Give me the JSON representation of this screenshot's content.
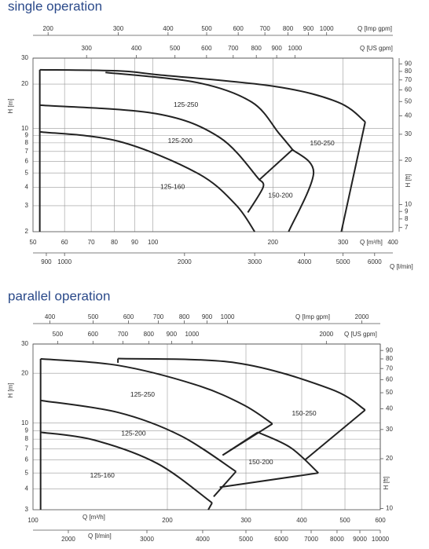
{
  "chart_data": [
    {
      "type": "line",
      "title": "single operation",
      "log_scale": true,
      "grid": true,
      "color": "#222222",
      "xlabel": "Q [m³/h]",
      "xlim": [
        50,
        400
      ],
      "xticks": [
        50,
        60,
        70,
        80,
        90,
        100,
        200,
        300,
        400
      ],
      "ylabel": "H [m]",
      "ylim": [
        2,
        30
      ],
      "yticks": [
        2,
        3,
        4,
        5,
        6,
        7,
        8,
        9,
        10,
        20,
        30
      ],
      "y2label": "H [ft]",
      "y2lim": [
        6.56,
        98.4
      ],
      "y2ticks": [
        7,
        8,
        9,
        10,
        20,
        30,
        40,
        50,
        60,
        70,
        80,
        90
      ],
      "top_axes": [
        {
          "label": "Q [Imp gpm]",
          "lim": [
            183.3,
            1466.4
          ],
          "ticks": [
            200,
            300,
            400,
            500,
            600,
            700,
            800,
            900,
            1000
          ]
        },
        {
          "label": "Q [US gpm]",
          "lim": [
            220.1,
            1761.2
          ],
          "ticks": [
            300,
            400,
            500,
            600,
            700,
            800,
            900,
            1000
          ]
        }
      ],
      "bottom_axis2": {
        "label": "Q [l/min]",
        "lim": [
          833.3,
          6666.7
        ],
        "ticks": [
          900,
          1000,
          2000,
          3000,
          4000,
          5000,
          6000
        ]
      },
      "curves": [
        {
          "x": [
            52,
            52
          ],
          "y": [
            2,
            25
          ]
        },
        {
          "x": [
            52,
            82,
            102,
            202,
            291,
            341
          ],
          "y": [
            25,
            24.6,
            23.2,
            19.3,
            15.1,
            11.1
          ]
        },
        {
          "x": [
            341,
            297
          ],
          "y": [
            11.1,
            2
          ]
        },
        {
          "x": [
            76,
            129,
            177,
            207,
            224
          ],
          "y": [
            24,
            20.5,
            15.1,
            9.3,
            7.2
          ]
        },
        {
          "x": [
            224,
            253,
            219
          ],
          "y": [
            7.2,
            5,
            2
          ]
        },
        {
          "x": [
            185,
            224
          ],
          "y": [
            4.5,
            7.2
          ]
        },
        {
          "x": [
            52,
            102,
            147,
            185
          ],
          "y": [
            14.4,
            12.6,
            8.7,
            4.5
          ]
        },
        {
          "x": [
            185,
            189,
            173
          ],
          "y": [
            4.5,
            4,
            2.7
          ]
        },
        {
          "x": [
            52,
            82,
            129,
            161,
            180
          ],
          "y": [
            9.5,
            8.2,
            5,
            3.07,
            2
          ]
        }
      ],
      "region_labels": [
        {
          "text": "125-250",
          "x": 121,
          "y": 14.4
        },
        {
          "text": "125-200",
          "x": 117,
          "y": 8.2
        },
        {
          "text": "125-160",
          "x": 112,
          "y": 4.0
        },
        {
          "text": "150-250",
          "x": 266,
          "y": 7.9
        },
        {
          "text": "150-200",
          "x": 209,
          "y": 3.5
        }
      ]
    },
    {
      "type": "line",
      "title": "parallel operation",
      "log_scale": true,
      "grid": true,
      "color": "#222222",
      "xlabel": "Q [m³/h]",
      "xlim": [
        100,
        600
      ],
      "xticks": [
        100,
        200,
        300,
        400,
        500,
        600
      ],
      "ylabel": "H [m]",
      "ylim": [
        3,
        30
      ],
      "yticks": [
        3,
        4,
        5,
        6,
        7,
        8,
        9,
        10,
        20,
        30
      ],
      "y2label": "H [ft]",
      "y2lim": [
        9.84,
        98.4
      ],
      "y2ticks": [
        10,
        20,
        30,
        40,
        50,
        60,
        70,
        80,
        90
      ],
      "top_axes": [
        {
          "label": "Q [Imp gpm]",
          "lim": [
            366.6,
            2199.6
          ],
          "ticks": [
            400,
            500,
            600,
            700,
            800,
            900,
            1000,
            2000
          ]
        },
        {
          "label": "Q [US gpm]",
          "lim": [
            440.3,
            2641.8
          ],
          "ticks": [
            500,
            600,
            700,
            800,
            900,
            1000,
            2000
          ]
        }
      ],
      "bottom_axis2": {
        "label": "Q [l/min]",
        "lim": [
          1666.7,
          10000
        ],
        "ticks": [
          2000,
          3000,
          4000,
          5000,
          6000,
          7000,
          8000,
          9000,
          10000
        ]
      },
      "curves": [
        {
          "x": [
            104,
            104
          ],
          "y": [
            3,
            24.4
          ]
        },
        {
          "x": [
            104,
            155,
            232,
            296,
            344
          ],
          "y": [
            24.4,
            22.3,
            17.0,
            12.9,
            9.9
          ]
        },
        {
          "x": [
            344,
            266
          ],
          "y": [
            9.9,
            6.4
          ]
        },
        {
          "x": [
            155,
            155
          ],
          "y": [
            23.1,
            24.5
          ]
        },
        {
          "x": [
            155,
            285,
            463,
            555
          ],
          "y": [
            24.5,
            23.1,
            16.1,
            12.0
          ]
        },
        {
          "x": [
            555,
            407
          ],
          "y": [
            12.0,
            6.0
          ]
        },
        {
          "x": [
            266,
            319
          ],
          "y": [
            6.4,
            8.8
          ]
        },
        {
          "x": [
            319,
            378,
            436
          ],
          "y": [
            8.8,
            7.1,
            5.0
          ]
        },
        {
          "x": [
            436,
            262
          ],
          "y": [
            5.0,
            4.1
          ]
        },
        {
          "x": [
            104,
            155,
            214,
            285
          ],
          "y": [
            13.7,
            11.6,
            8.4,
            5.1
          ]
        },
        {
          "x": [
            285,
            254
          ],
          "y": [
            5.1,
            3.6
          ]
        },
        {
          "x": [
            104,
            137,
            190,
            252
          ],
          "y": [
            8.8,
            7.9,
            5.7,
            3.3
          ]
        },
        {
          "x": [
            252,
            247
          ],
          "y": [
            3.3,
            3.0
          ]
        }
      ],
      "region_labels": [
        {
          "text": "125-250",
          "x": 176,
          "y": 14.8
        },
        {
          "text": "125-200",
          "x": 168,
          "y": 8.6
        },
        {
          "text": "125-160",
          "x": 143,
          "y": 4.8
        },
        {
          "text": "150-250",
          "x": 405,
          "y": 11.4
        },
        {
          "text": "150-200",
          "x": 324,
          "y": 5.8
        }
      ]
    }
  ]
}
